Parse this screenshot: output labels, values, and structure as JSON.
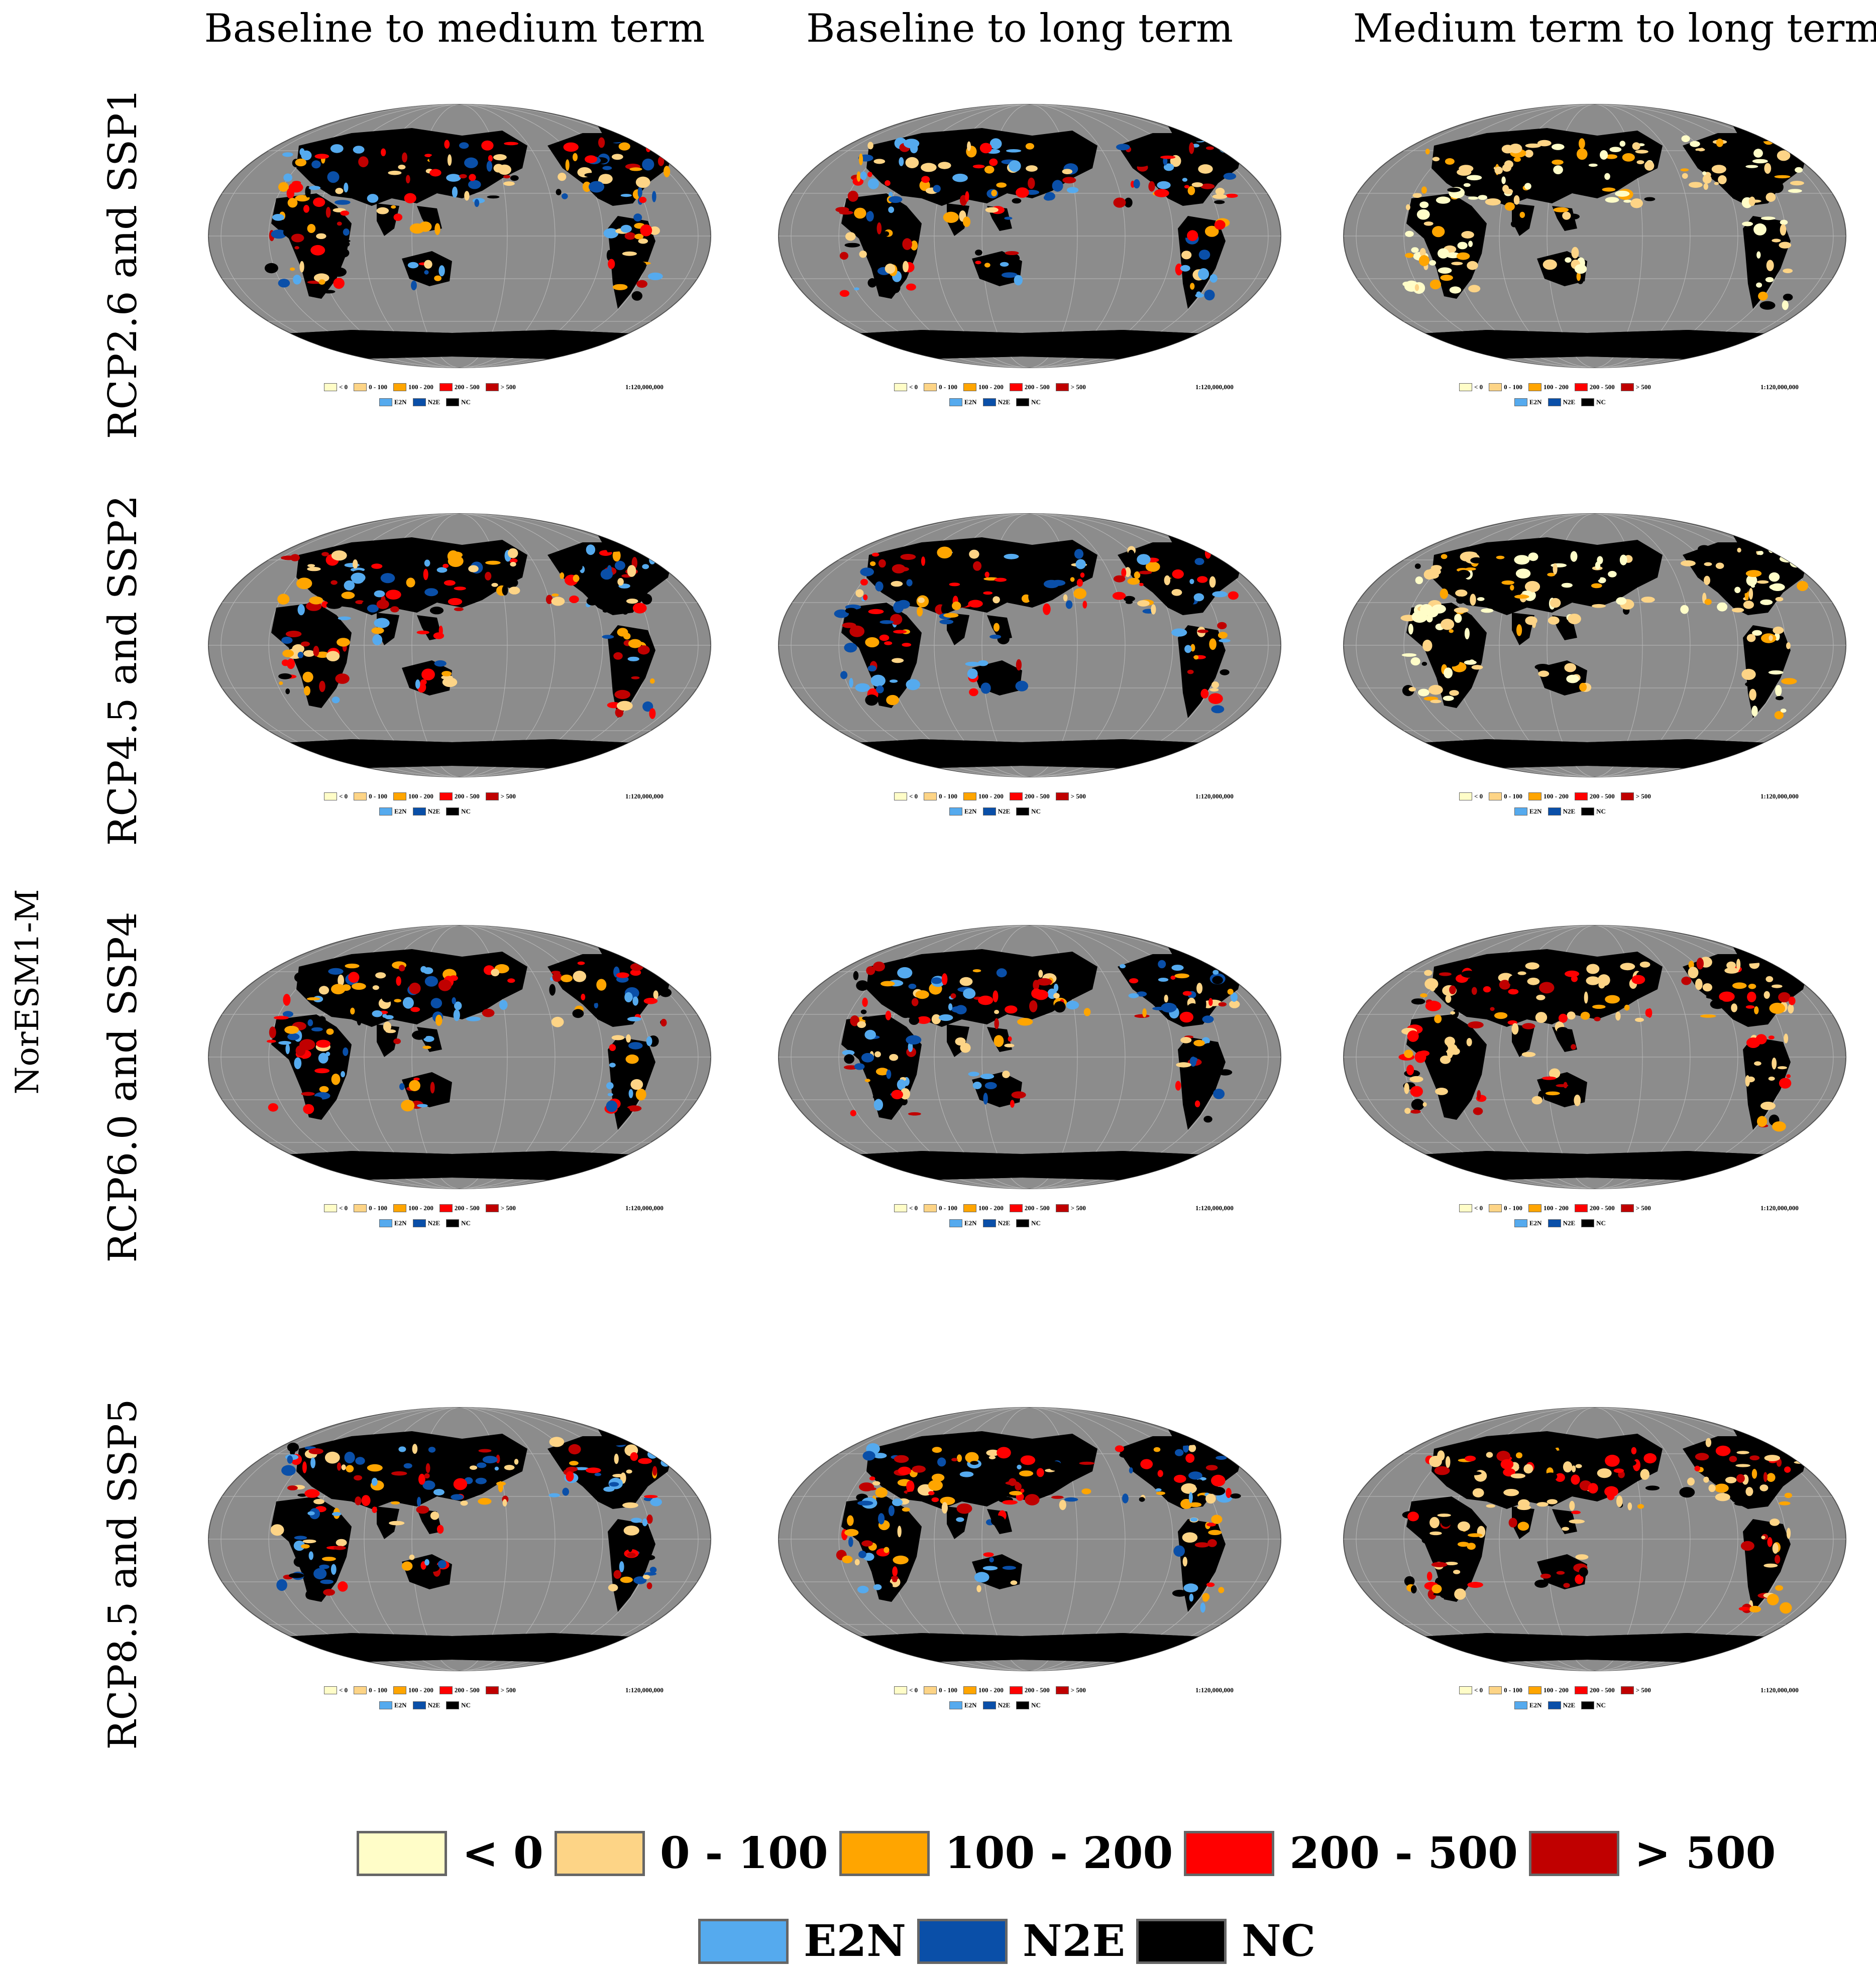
{
  "column_titles": [
    "Baseline to medium term",
    "Baseline to long term",
    "Medium term to long term"
  ],
  "row_titles": [
    "RCP2.6 and SSP1",
    "RCP4.5 and SSP2",
    "RCP6.0 and SSP4",
    "RCP8.5 and SSP5"
  ],
  "model_label": "NorESM1-M",
  "map_scale": "1:120,000,000",
  "legend": {
    "classes": [
      {
        "label": "< 0",
        "color": "#fffdc8"
      },
      {
        "label": "0 - 100",
        "color": "#fdd486"
      },
      {
        "label": "100 - 200",
        "color": "#ffa500"
      },
      {
        "label": "200 - 500",
        "color": "#ff0000"
      },
      {
        "label": "> 500",
        "color": "#c00000"
      }
    ],
    "transitions": [
      {
        "label": "E2N",
        "color": "#55aaee"
      },
      {
        "label": "N2E",
        "color": "#0a4fa8"
      },
      {
        "label": "NC",
        "color": "#000000"
      }
    ]
  },
  "ocean_color": "#8c8c8c",
  "panels": [
    {
      "row": 0,
      "col": 0,
      "scheme": "mixed"
    },
    {
      "row": 0,
      "col": 1,
      "scheme": "mixed"
    },
    {
      "row": 0,
      "col": 2,
      "scheme": "light"
    },
    {
      "row": 1,
      "col": 0,
      "scheme": "mixed"
    },
    {
      "row": 1,
      "col": 1,
      "scheme": "mixed"
    },
    {
      "row": 1,
      "col": 2,
      "scheme": "light"
    },
    {
      "row": 2,
      "col": 0,
      "scheme": "mixed"
    },
    {
      "row": 2,
      "col": 1,
      "scheme": "mixed"
    },
    {
      "row": 2,
      "col": 2,
      "scheme": "warm"
    },
    {
      "row": 3,
      "col": 0,
      "scheme": "mixed"
    },
    {
      "row": 3,
      "col": 1,
      "scheme": "mixed"
    },
    {
      "row": 3,
      "col": 2,
      "scheme": "warm"
    }
  ]
}
